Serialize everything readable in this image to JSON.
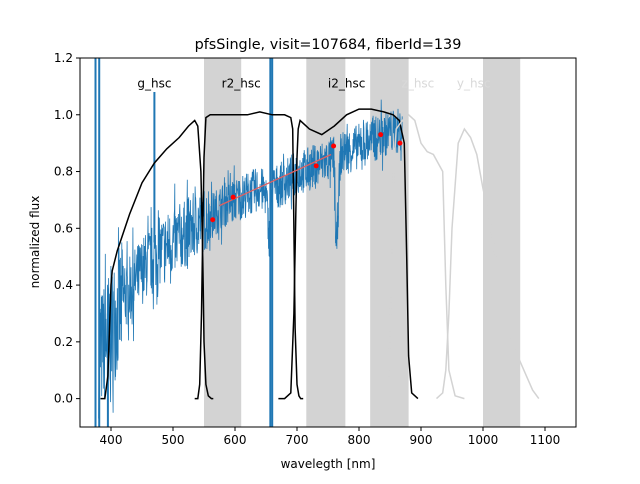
{
  "chart_data": {
    "type": "line",
    "title": "pfsSingle, visit=107684, fiberId=139",
    "xlabel": "wavelegth [nm]",
    "ylabel": "normalized flux",
    "xlim": [
      350,
      1150
    ],
    "ylim": [
      -0.1,
      1.2
    ],
    "xticks": [
      400,
      500,
      600,
      700,
      800,
      900,
      1000,
      1100
    ],
    "yticks": [
      0.0,
      0.2,
      0.4,
      0.6,
      0.8,
      1.0,
      1.2
    ],
    "grid": false,
    "colors": {
      "spectrum": "#1f77b4",
      "filter_active": "#000000",
      "filter_inactive": "#d3d3d3",
      "points": "#ff0000",
      "fit_line": "#e06060",
      "shaded": "#d3d3d3"
    },
    "shaded_regions": [
      [
        550,
        610
      ],
      [
        715,
        778
      ],
      [
        818,
        880
      ],
      [
        1000,
        1060
      ]
    ],
    "filter_labels": [
      {
        "text": "g_hsc",
        "x": 470,
        "y": 1.11,
        "active": true
      },
      {
        "text": "r2_hsc",
        "x": 610,
        "y": 1.11,
        "active": true
      },
      {
        "text": "i2_hsc",
        "x": 780,
        "y": 1.11,
        "active": true
      },
      {
        "text": "z_hsc",
        "x": 895,
        "y": 1.11,
        "active": false
      },
      {
        "text": "y_hsc",
        "x": 985,
        "y": 1.11,
        "active": false
      }
    ],
    "filter_curves": [
      {
        "name": "g_hsc",
        "active": true,
        "x": [
          383,
          390,
          395,
          400,
          402,
          410,
          430,
          450,
          470,
          490,
          510,
          525,
          535,
          540,
          545,
          548,
          550,
          553,
          557,
          562,
          565
        ],
        "y": [
          0,
          0,
          0.08,
          0.4,
          0.45,
          0.52,
          0.65,
          0.76,
          0.83,
          0.88,
          0.92,
          0.96,
          0.98,
          0.96,
          0.8,
          0.5,
          0.2,
          0.05,
          0.01,
          0,
          0
        ]
      },
      {
        "name": "r2_hsc",
        "active": true,
        "x": [
          535,
          540,
          543,
          546,
          548,
          550,
          553,
          560,
          580,
          600,
          620,
          640,
          660,
          680,
          690,
          693,
          695,
          697,
          700,
          703,
          706,
          710
        ],
        "y": [
          0,
          0,
          0.05,
          0.3,
          0.6,
          0.85,
          0.99,
          1.0,
          1.0,
          1.0,
          1.0,
          1.01,
          1.0,
          1.0,
          0.99,
          0.95,
          0.6,
          0.25,
          0.05,
          0.01,
          0,
          0
        ]
      },
      {
        "name": "i2_hsc",
        "active": true,
        "x": [
          670,
          680,
          690,
          695,
          698,
          700,
          702,
          705,
          710,
          720,
          740,
          760,
          780,
          800,
          820,
          840,
          855,
          865,
          873,
          877,
          880,
          885,
          895
        ],
        "y": [
          0,
          0,
          0.02,
          0.3,
          0.65,
          0.85,
          0.95,
          0.98,
          0.97,
          0.95,
          0.93,
          0.96,
          1.0,
          1.02,
          1.02,
          1.01,
          1.0,
          0.98,
          0.9,
          0.5,
          0.15,
          0.02,
          0
        ]
      },
      {
        "name": "z_hsc",
        "active": false,
        "x": [
          840,
          848,
          852,
          856,
          860,
          870,
          880,
          890,
          900,
          910,
          920,
          935,
          940,
          945,
          955,
          970
        ],
        "y": [
          0,
          0.05,
          0.4,
          0.8,
          0.95,
          0.98,
          1.0,
          0.98,
          0.9,
          0.87,
          0.86,
          0.8,
          0.4,
          0.1,
          0.01,
          0
        ]
      },
      {
        "name": "y_hsc",
        "active": false,
        "x": [
          925,
          935,
          940,
          945,
          950,
          960,
          970,
          980,
          990,
          1000,
          1010,
          1020,
          1030,
          1050,
          1070,
          1080,
          1090
        ],
        "y": [
          0,
          0.02,
          0.1,
          0.3,
          0.6,
          0.9,
          0.95,
          0.92,
          0.86,
          0.74,
          0.64,
          0.5,
          0.35,
          0.18,
          0.08,
          0.03,
          0
        ]
      }
    ],
    "spectrum": {
      "name": "flux",
      "x": [
        380,
        390,
        400,
        410,
        420,
        430,
        440,
        450,
        460,
        470,
        480,
        490,
        500,
        510,
        520,
        530,
        540,
        550,
        560,
        570,
        580,
        590,
        600,
        610,
        620,
        630,
        640,
        650,
        656,
        660,
        670,
        680,
        690,
        700,
        710,
        720,
        730,
        740,
        750,
        760,
        763,
        770,
        780,
        790,
        800,
        810,
        820,
        830,
        840,
        850,
        860,
        870
      ],
      "y": [
        0.15,
        0.2,
        0.25,
        0.3,
        0.35,
        0.38,
        0.42,
        0.45,
        0.48,
        0.5,
        0.52,
        0.54,
        0.55,
        0.57,
        0.58,
        0.6,
        0.62,
        0.63,
        0.64,
        0.66,
        0.68,
        0.69,
        0.7,
        0.71,
        0.72,
        0.73,
        0.74,
        0.72,
        0.55,
        0.74,
        0.75,
        0.76,
        0.78,
        0.8,
        0.8,
        0.81,
        0.82,
        0.83,
        0.84,
        0.85,
        0.5,
        0.86,
        0.87,
        0.88,
        0.89,
        0.9,
        0.91,
        0.92,
        0.93,
        0.94,
        0.94,
        0.95
      ]
    },
    "spikes": [
      {
        "x": 375,
        "y_low": -0.1,
        "y_high": 1.2
      },
      {
        "x": 381,
        "y_low": -0.1,
        "y_high": 1.2
      },
      {
        "x": 395,
        "y_low": -0.1,
        "y_high": 0.3
      },
      {
        "x": 470,
        "y_low": 0.55,
        "y_high": 1.08
      },
      {
        "x": 657,
        "y_low": -0.1,
        "y_high": 1.2
      },
      {
        "x": 660,
        "y_low": -0.1,
        "y_high": 1.2
      }
    ],
    "photometry_points": {
      "x": [
        564,
        597,
        731,
        759,
        835,
        866
      ],
      "y": [
        0.63,
        0.71,
        0.82,
        0.89,
        0.93,
        0.9
      ]
    },
    "fit_line": {
      "x": [
        575,
        755
      ],
      "y": [
        0.68,
        0.86
      ]
    }
  }
}
